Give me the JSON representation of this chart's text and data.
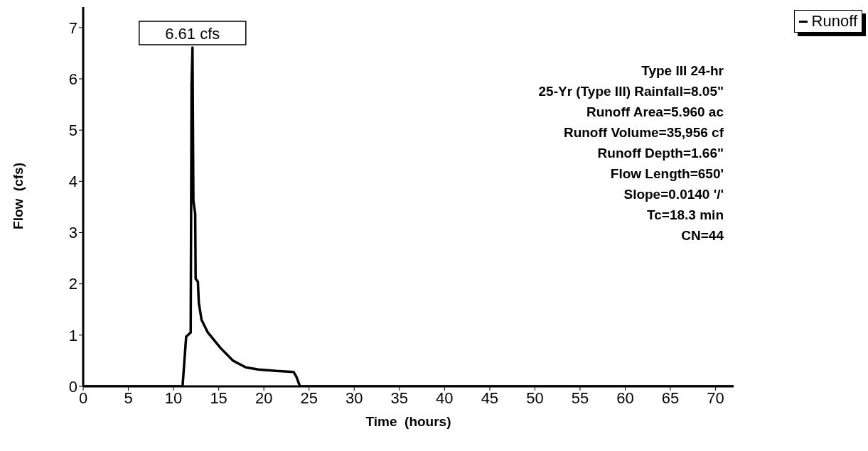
{
  "chart_data": {
    "type": "line",
    "xlabel": "Time  (hours)",
    "ylabel": "Flow  (cfs)",
    "x": [
      0,
      11.0,
      11.4,
      11.9,
      12.0,
      12.1,
      12.2,
      12.4,
      12.45,
      12.7,
      12.8,
      13.1,
      13.8,
      15.2,
      16.6,
      18.0,
      19.4,
      21.4,
      23.3,
      23.6,
      24.0,
      72
    ],
    "series": [
      {
        "name": "Runoff",
        "color": "#000000",
        "values": [
          0,
          0,
          0.97,
          1.05,
          5.88,
          6.61,
          3.62,
          3.37,
          2.1,
          2.04,
          1.63,
          1.3,
          1.05,
          0.75,
          0.5,
          0.37,
          0.33,
          0.3,
          0.28,
          0.19,
          0,
          0
        ]
      }
    ],
    "xlim": [
      0,
      72
    ],
    "ylim": [
      0,
      7.4
    ],
    "xticks": [
      0,
      5,
      10,
      15,
      20,
      25,
      30,
      35,
      40,
      45,
      50,
      55,
      60,
      65,
      70
    ],
    "yticks": [
      0,
      1,
      2,
      3,
      4,
      5,
      6,
      7
    ],
    "annotations": [
      {
        "text": "6.61 cfs",
        "x": 12.1,
        "y": 6.61
      },
      "Type III 24-hr",
      "25-Yr (Type III) Rainfall=8.05\"",
      "Runoff Area=5.960 ac",
      "Runoff Volume=35,956 cf",
      "Runoff Depth=1.66\"",
      "Flow Length=650'",
      "Slope=0.0140 '/'",
      "Tc=18.3 min",
      "CN=44"
    ],
    "legend": "top right"
  }
}
